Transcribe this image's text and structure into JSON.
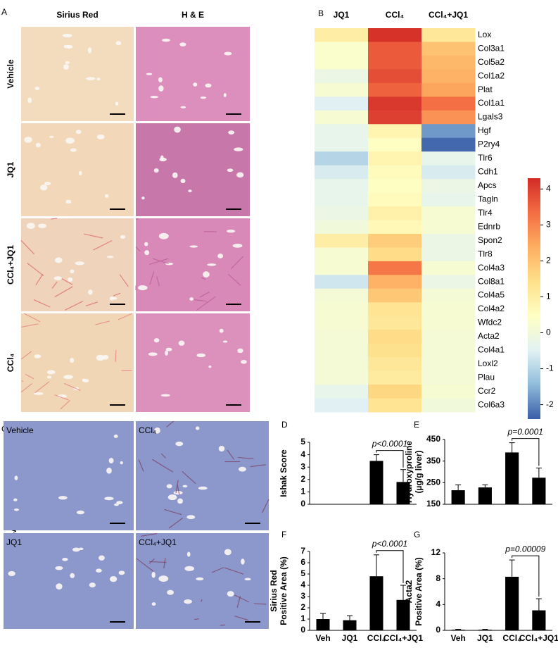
{
  "figure": {
    "panel_a": {
      "label": "A",
      "columns": [
        "Sirius Red",
        "H & E"
      ],
      "rows": [
        "Vehicle",
        "JQ1",
        "CCl₄+JQ1",
        "CCl₄"
      ]
    },
    "panel_c": {
      "label": "C",
      "stain": "α-Acta2",
      "images": [
        "Vehicle",
        "CCl₄",
        "JQ1",
        "CCl₄+JQ1"
      ]
    }
  },
  "chart_data": [
    {
      "type": "heatmap",
      "panel": "B",
      "columns": [
        "JQ1",
        "CCl₄",
        "CCl₄+JQ1"
      ],
      "rows": [
        "Lox",
        "Col3a1",
        "Col5a2",
        "Col1a2",
        "Plat",
        "Col1a1",
        "Lgals3",
        "Hgf",
        "P2ry4",
        "Tlr6",
        "Cdh1",
        "Apcs",
        "Tagln",
        "Tlr4",
        "Ednrb",
        "Spon2",
        "Tlr8",
        "Col4a3",
        "Col8a1",
        "Col4a5",
        "Col4a2",
        "Wfdc2",
        "Acta2",
        "Col4a1",
        "Loxl2",
        "Plau",
        "Ccr2",
        "Col6a3"
      ],
      "values": [
        [
          1.0,
          4.2,
          1.2
        ],
        [
          0.3,
          3.6,
          2.0
        ],
        [
          0.3,
          3.6,
          2.2
        ],
        [
          -0.2,
          3.8,
          2.3
        ],
        [
          0.2,
          3.5,
          2.5
        ],
        [
          -0.5,
          4.1,
          3.3
        ],
        [
          0.2,
          4.0,
          2.8
        ],
        [
          -0.3,
          0.8,
          -1.8
        ],
        [
          -0.3,
          0.5,
          -2.3
        ],
        [
          -1.0,
          0.8,
          -0.3
        ],
        [
          -0.6,
          0.6,
          -0.6
        ],
        [
          -0.3,
          0.5,
          -0.2
        ],
        [
          -0.3,
          0.6,
          -0.3
        ],
        [
          -0.2,
          0.9,
          0.2
        ],
        [
          0.0,
          0.7,
          0.2
        ],
        [
          1.0,
          1.8,
          -0.2
        ],
        [
          0.2,
          1.5,
          -0.2
        ],
        [
          0.2,
          3.2,
          0.2
        ],
        [
          -0.7,
          2.3,
          -0.2
        ],
        [
          0.1,
          1.9,
          0.1
        ],
        [
          0.2,
          1.3,
          0.2
        ],
        [
          0.2,
          1.2,
          0.2
        ],
        [
          0.1,
          1.5,
          0.1
        ],
        [
          0.1,
          1.4,
          0.1
        ],
        [
          0.1,
          1.2,
          0.1
        ],
        [
          0.1,
          1.1,
          0.1
        ],
        [
          -0.3,
          1.6,
          0.2
        ],
        [
          -0.5,
          1.3,
          0.0
        ]
      ],
      "zlim": [
        -2.4,
        4.3
      ],
      "zticks": [
        -2,
        -1,
        0,
        1,
        2,
        3,
        4
      ],
      "colorscale": [
        "#3a5ea8",
        "#8fbcdb",
        "#e2f2f3",
        "#ffffc4",
        "#fee08b",
        "#fdae61",
        "#f46d43",
        "#d22b27"
      ]
    },
    {
      "type": "bar",
      "panel": "D",
      "ylabel": [
        "Ishak Score"
      ],
      "categories": [
        null,
        null,
        null,
        null
      ],
      "values": [
        0,
        0,
        3.5,
        1.8
      ],
      "errors": [
        0,
        0,
        0.5,
        1.0
      ],
      "ylim": [
        0,
        5
      ],
      "yticks": [
        0,
        1,
        2,
        3,
        4,
        5
      ],
      "annotation": "p<0.0001",
      "color": "#000000"
    },
    {
      "type": "bar",
      "panel": "E",
      "ylabel": [
        "Hydroxyproline",
        "(µg/g liver)"
      ],
      "categories": [
        null,
        null,
        null,
        null
      ],
      "values": [
        215,
        228,
        390,
        273
      ],
      "errors": [
        25,
        12,
        45,
        45
      ],
      "ylim": [
        150,
        450
      ],
      "yticks": [
        150,
        250,
        350,
        450
      ],
      "annotation": "p=0.0001",
      "color": "#000000"
    },
    {
      "type": "bar",
      "panel": "F",
      "ylabel": [
        "Sirius Red",
        "Positive Area (%)"
      ],
      "categories": [
        "Veh",
        "JQ1",
        "CCl₄",
        "CCl₄+JQ1"
      ],
      "values": [
        1.0,
        0.9,
        4.8,
        2.7
      ],
      "errors": [
        0.5,
        0.4,
        1.9,
        1.3
      ],
      "ylim": [
        0,
        7
      ],
      "yticks": [
        0,
        1,
        2,
        3,
        4,
        5,
        6,
        7
      ],
      "annotation": "p<0.0001",
      "color": "#000000"
    },
    {
      "type": "bar",
      "panel": "G",
      "ylabel": [
        "Acta2",
        "Positive Area (%)"
      ],
      "categories": [
        "Veh",
        "JQ1",
        "CCl₄",
        "CCl₄+JQ1"
      ],
      "values": [
        0.1,
        0.1,
        8.3,
        3.1
      ],
      "errors": [
        0.05,
        0.05,
        2.6,
        1.8
      ],
      "ylim": [
        0,
        12
      ],
      "yticks": [
        0,
        4,
        8,
        12
      ],
      "annotation": "p=0.00009",
      "color": "#000000"
    }
  ]
}
